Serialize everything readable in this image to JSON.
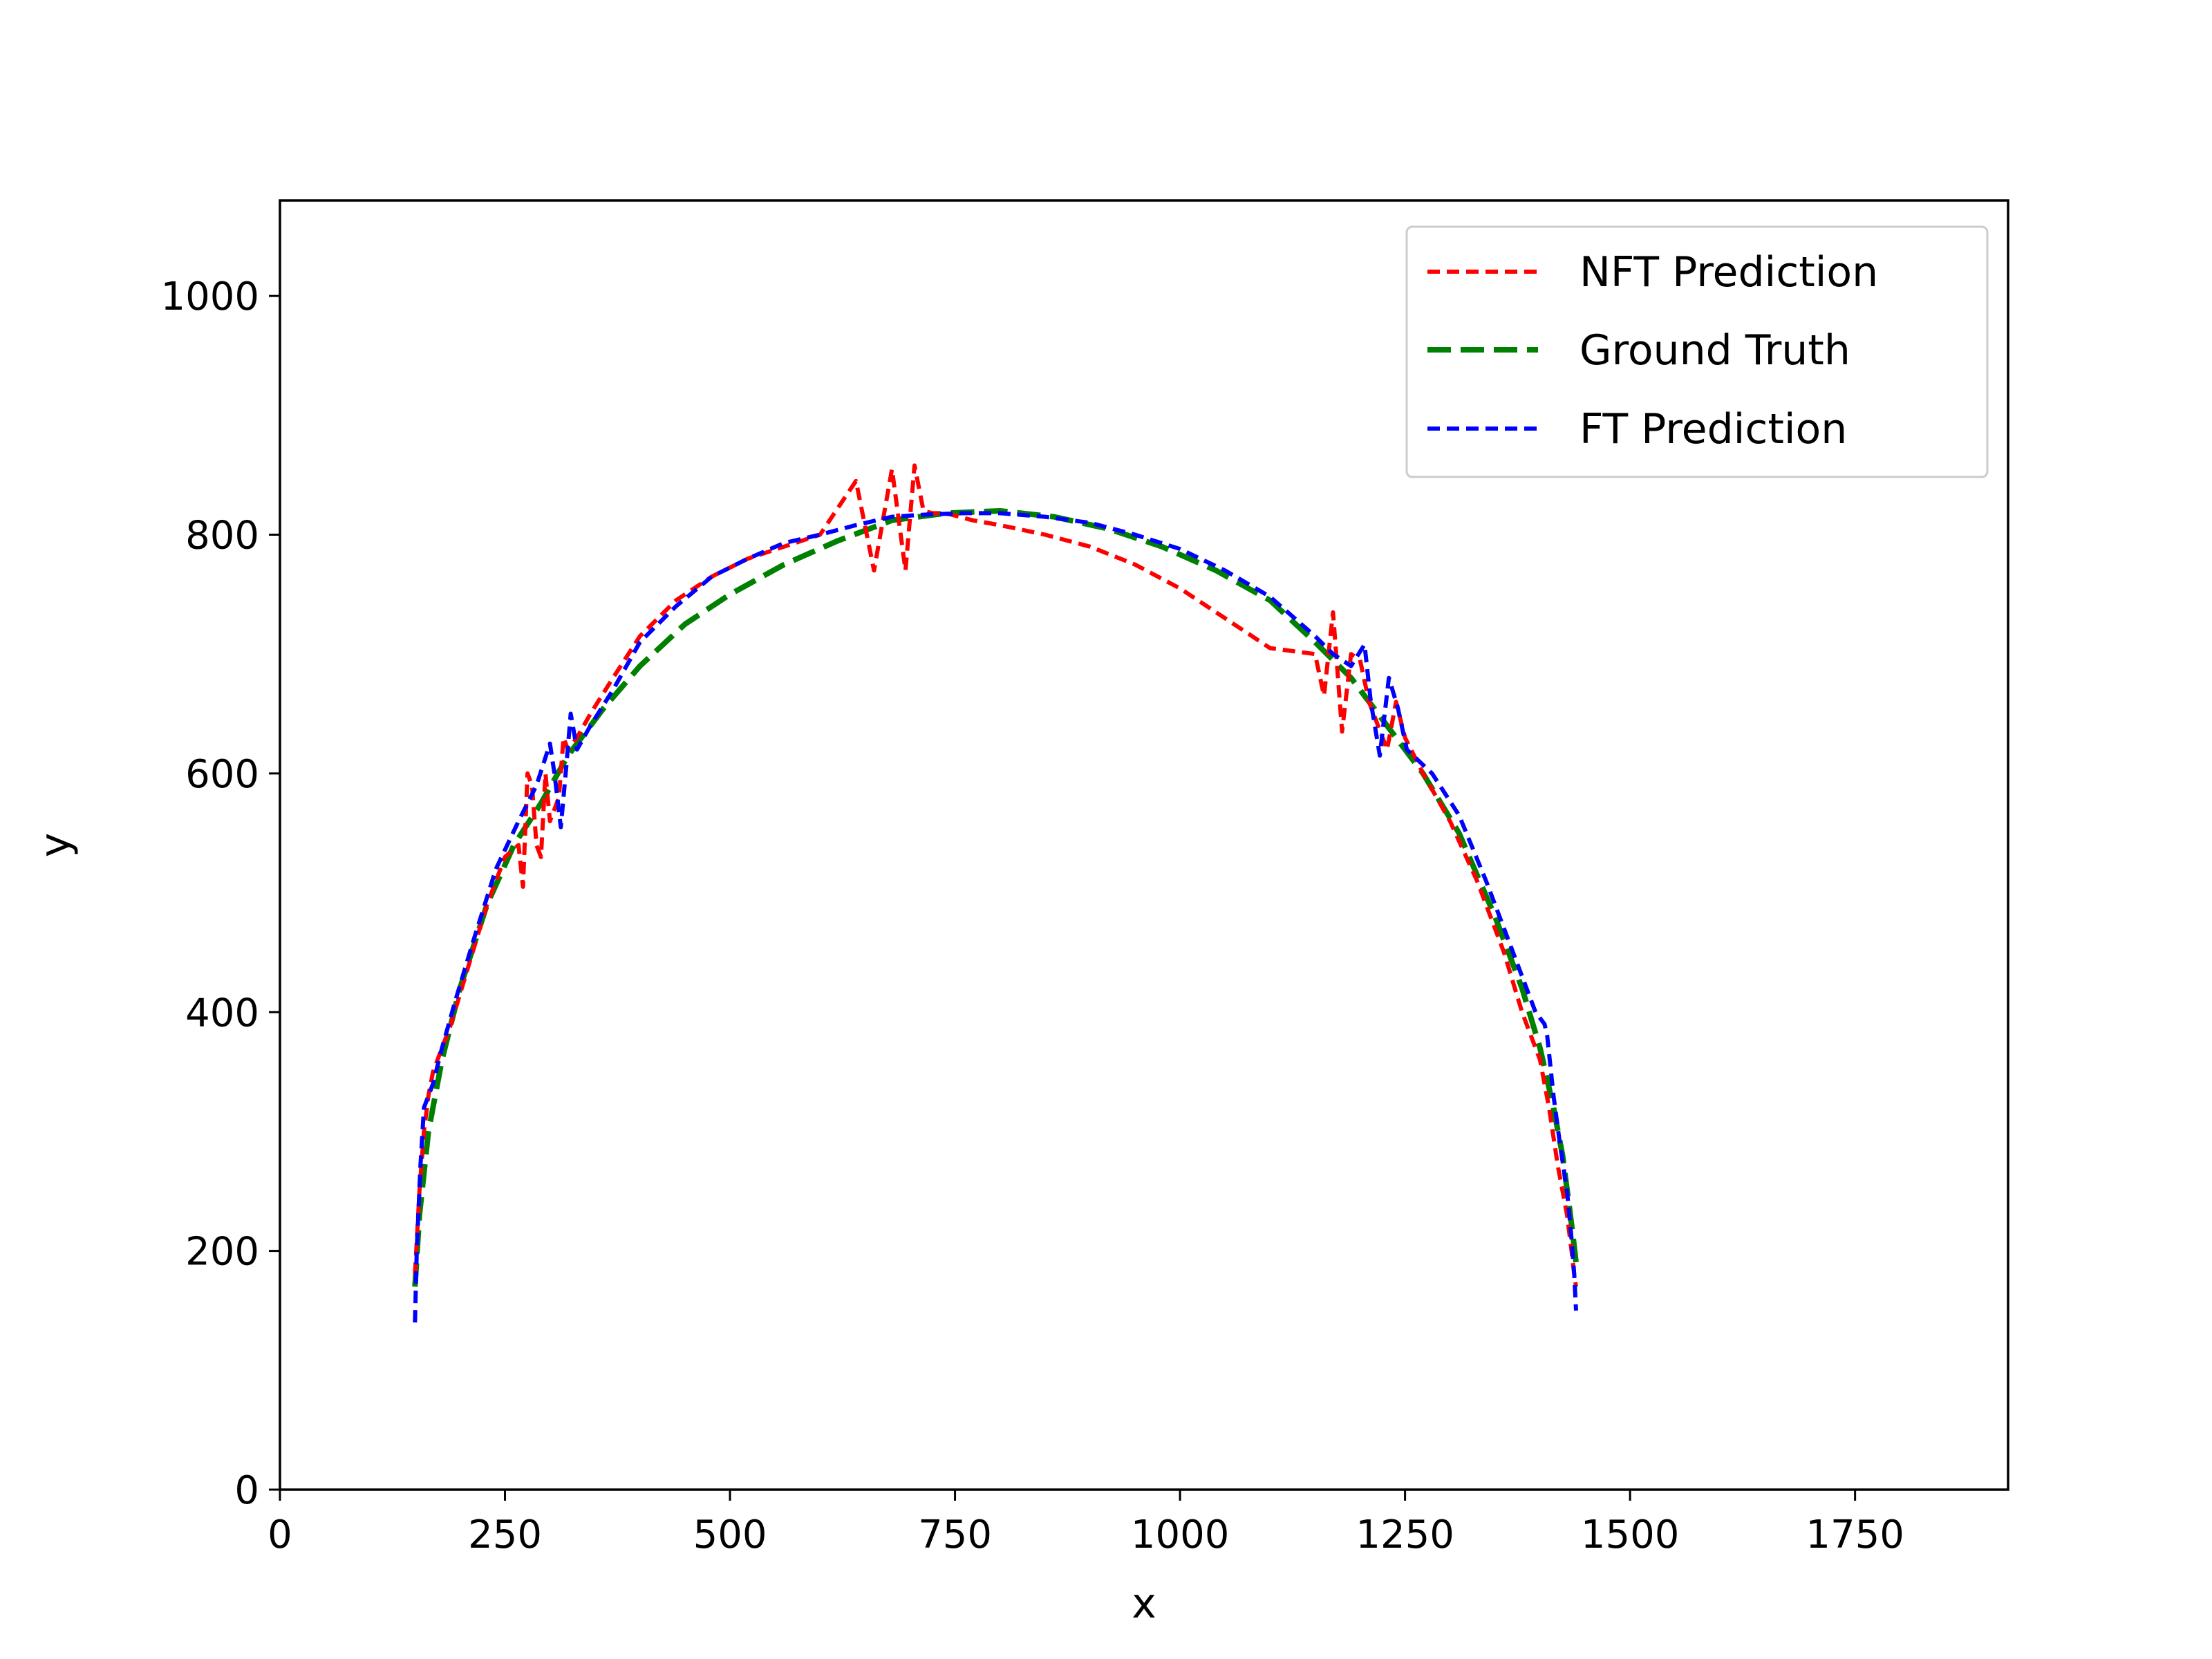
{
  "chart_data": {
    "type": "line",
    "title": "",
    "xlabel": "x",
    "ylabel": "y",
    "xlim": [
      0,
      1920
    ],
    "ylim": [
      0,
      1080
    ],
    "xticks": [
      0,
      250,
      500,
      750,
      1000,
      1250,
      1500,
      1750
    ],
    "yticks": [
      0,
      200,
      400,
      600,
      800,
      1000
    ],
    "xtick_labels": [
      "0",
      "250",
      "500",
      "750",
      "1000",
      "1250",
      "1500",
      "1750"
    ],
    "ytick_labels": [
      "0",
      "200",
      "400",
      "600",
      "800",
      "1000"
    ],
    "grid": false,
    "legend_position": "top-right",
    "series": [
      {
        "name": "NFT Prediction",
        "color": "#ff0000",
        "line_style": "dashed",
        "x": [
          150,
          155,
          160,
          165,
          170,
          180,
          190,
          210,
          230,
          250,
          265,
          270,
          275,
          280,
          285,
          290,
          295,
          300,
          305,
          310,
          315,
          320,
          330,
          345,
          370,
          400,
          440,
          480,
          520,
          560,
          600,
          640,
          660,
          680,
          695,
          705,
          715,
          725,
          735,
          745,
          755,
          770,
          800,
          850,
          900,
          950,
          1000,
          1050,
          1100,
          1150,
          1160,
          1170,
          1180,
          1190,
          1200,
          1210,
          1220,
          1230,
          1240,
          1250,
          1270,
          1300,
          1330,
          1360,
          1380,
          1400,
          1410,
          1420,
          1430,
          1435,
          1438,
          1440
        ],
        "y": [
          180,
          250,
          300,
          330,
          350,
          370,
          390,
          440,
          490,
          530,
          540,
          505,
          600,
          590,
          540,
          530,
          600,
          560,
          570,
          580,
          630,
          620,
          630,
          650,
          680,
          715,
          745,
          765,
          780,
          790,
          800,
          845,
          770,
          855,
          770,
          858,
          820,
          818,
          818,
          817,
          815,
          812,
          808,
          800,
          790,
          775,
          755,
          730,
          705,
          700,
          665,
          735,
          635,
          700,
          695,
          660,
          640,
          620,
          660,
          630,
          600,
          560,
          510,
          450,
          400,
          360,
          320,
          270,
          230,
          200,
          180,
          170
        ]
      },
      {
        "name": "Ground Truth",
        "color": "#008000",
        "line_style": "dashed",
        "x": [
          150,
          155,
          165,
          180,
          200,
          230,
          260,
          290,
          320,
          360,
          400,
          450,
          500,
          560,
          620,
          680,
          740,
          800,
          860,
          920,
          980,
          1040,
          1100,
          1150,
          1190,
          1230,
          1270,
          1310,
          1350,
          1380,
          1400,
          1415,
          1425,
          1432,
          1437,
          1440
        ],
        "y": [
          170,
          230,
          300,
          360,
          420,
          490,
          540,
          575,
          615,
          655,
          690,
          725,
          750,
          775,
          795,
          812,
          818,
          820,
          815,
          805,
          790,
          770,
          745,
          710,
          680,
          640,
          600,
          550,
          480,
          420,
          370,
          320,
          280,
          240,
          210,
          190
        ]
      },
      {
        "name": "FT Prediction",
        "color": "#0000ff",
        "line_style": "dashed",
        "x": [
          150,
          152,
          156,
          160,
          170,
          180,
          195,
          215,
          240,
          265,
          285,
          300,
          305,
          312,
          318,
          323,
          330,
          345,
          370,
          400,
          440,
          480,
          520,
          560,
          600,
          640,
          680,
          720,
          760,
          800,
          850,
          900,
          950,
          1000,
          1050,
          1100,
          1150,
          1170,
          1190,
          1205,
          1212,
          1222,
          1232,
          1242,
          1252,
          1280,
          1310,
          1340,
          1370,
          1395,
          1405,
          1408,
          1415,
          1422,
          1430,
          1435,
          1438,
          1440
        ],
        "y": [
          140,
          200,
          270,
          320,
          340,
          370,
          410,
          460,
          520,
          560,
          590,
          625,
          600,
          555,
          605,
          650,
          620,
          640,
          670,
          710,
          740,
          765,
          780,
          793,
          800,
          808,
          815,
          817,
          818,
          818,
          815,
          810,
          800,
          788,
          770,
          748,
          715,
          700,
          690,
          708,
          660,
          615,
          680,
          655,
          620,
          600,
          565,
          510,
          450,
          400,
          390,
          380,
          330,
          290,
          250,
          210,
          180,
          150
        ]
      }
    ]
  }
}
